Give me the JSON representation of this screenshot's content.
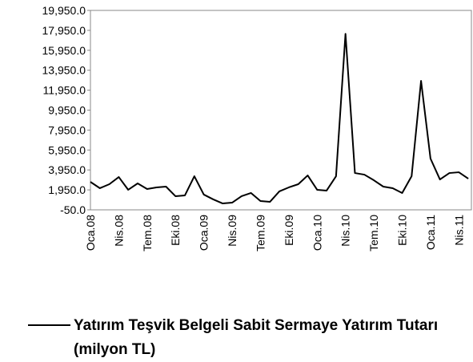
{
  "chart_data": {
    "type": "line",
    "categories": [
      "Oca.08",
      null,
      null,
      "Nis.08",
      null,
      null,
      "Tem.08",
      null,
      null,
      "Eki.08",
      null,
      null,
      "Oca.09",
      null,
      null,
      "Nis.09",
      null,
      null,
      "Tem.09",
      null,
      null,
      "Eki.09",
      null,
      null,
      "Oca.10",
      null,
      null,
      "Nis.10",
      null,
      null,
      "Tem.10",
      null,
      null,
      "Eki.10",
      null,
      null,
      "Oca.11",
      null,
      null,
      "Nis.11",
      null
    ],
    "series": [
      {
        "name": "Yatırım Teşvik Belgeli Sabit Sermaye Yatırım Tutarı (milyon TL)",
        "color": "#000000",
        "values": [
          2750,
          2120,
          2520,
          3240,
          1960,
          2600,
          2040,
          2200,
          2280,
          1320,
          1400,
          3320,
          1480,
          1000,
          590,
          670,
          1320,
          1640,
          830,
          750,
          1800,
          2200,
          2520,
          3400,
          1960,
          1880,
          3320,
          17600,
          3640,
          3480,
          2920,
          2280,
          2120,
          1640,
          3320,
          12880,
          5090,
          3000,
          3640,
          3720,
          3080
        ]
      }
    ],
    "ylim": [
      -50,
      19950
    ],
    "yticks": [
      {
        "value": -50,
        "label": "-50.0"
      },
      {
        "value": 1950,
        "label": "1,950.0"
      },
      {
        "value": 3950,
        "label": "3,950.0"
      },
      {
        "value": 5950,
        "label": "5,950.0"
      },
      {
        "value": 7950,
        "label": "7,950.0"
      },
      {
        "value": 9950,
        "label": "9,950.0"
      },
      {
        "value": 11950,
        "label": "11,950.0"
      },
      {
        "value": 13950,
        "label": "13,950.0"
      },
      {
        "value": 15950,
        "label": "15,950.0"
      },
      {
        "value": 17950,
        "label": "17,950.0"
      },
      {
        "value": 19950,
        "label": "19,950.0"
      }
    ],
    "legend": "bottom"
  }
}
